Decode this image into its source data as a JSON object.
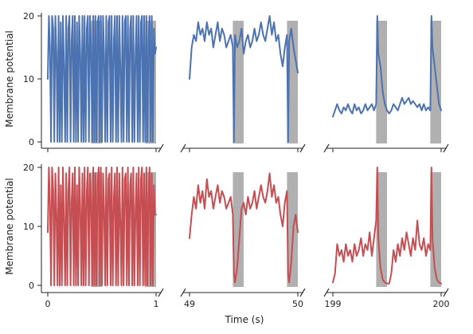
{
  "chart_data": {
    "type": "line",
    "layout": "2x3 grid of panels with broken x-axes",
    "ylabel": "Membrane potential",
    "xlabel": "Time (s)",
    "ylim": [
      0,
      22
    ],
    "yticks": [
      0,
      10,
      20
    ],
    "colors": {
      "top_row": "#4c72b0",
      "bottom_row": "#c44e52",
      "shade": "#b0b0b0",
      "axis": "#222222"
    },
    "segments": [
      {
        "xlim": [
          0,
          1
        ],
        "tick_values": [
          0,
          1
        ],
        "tick_labels": [
          "0",
          "1"
        ],
        "shaded": [
          [
            0.4,
            0.5
          ],
          [
            0.9,
            1.0
          ]
        ]
      },
      {
        "xlim": [
          49,
          50
        ],
        "tick_values": [
          49,
          50
        ],
        "tick_labels": [
          "49",
          "50"
        ],
        "shaded": [
          [
            49.4,
            49.5
          ],
          [
            49.9,
            50.0
          ]
        ]
      },
      {
        "xlim": [
          199,
          200
        ],
        "tick_values": [
          199,
          200
        ],
        "tick_labels": [
          "199",
          "200"
        ],
        "shaded": [
          [
            199.4,
            199.5
          ],
          [
            199.9,
            200.0
          ]
        ]
      }
    ],
    "panels": [
      {
        "row": 0,
        "col": 0,
        "series_color": "#4c72b0",
        "x": [
          0,
          0.01,
          0.02,
          0.03,
          0.04,
          0.05,
          0.06,
          0.07,
          0.08,
          0.09,
          0.1,
          0.11,
          0.12,
          0.13,
          0.14,
          0.15,
          0.16,
          0.17,
          0.18,
          0.19,
          0.2,
          0.21,
          0.22,
          0.23,
          0.24,
          0.25,
          0.26,
          0.27,
          0.28,
          0.29,
          0.3,
          0.31,
          0.32,
          0.33,
          0.34,
          0.35,
          0.36,
          0.37,
          0.38,
          0.39,
          0.4,
          0.41,
          0.42,
          0.43,
          0.44,
          0.45,
          0.46,
          0.47,
          0.48,
          0.49,
          0.5,
          0.51,
          0.52,
          0.53,
          0.54,
          0.55,
          0.56,
          0.57,
          0.58,
          0.59,
          0.6,
          0.61,
          0.62,
          0.63,
          0.64,
          0.65,
          0.66,
          0.67,
          0.68,
          0.69,
          0.7,
          0.71,
          0.72,
          0.73,
          0.74,
          0.75,
          0.76,
          0.77,
          0.78,
          0.79,
          0.8,
          0.81,
          0.82,
          0.83,
          0.84,
          0.85,
          0.86,
          0.87,
          0.88,
          0.89,
          0.9,
          0.91,
          0.92,
          0.93,
          0.94,
          0.95,
          0.96,
          0.97,
          0.98,
          0.99,
          1
        ],
        "y": [
          10,
          20,
          15,
          0,
          20,
          18,
          0,
          20,
          14,
          0,
          20,
          0,
          19,
          0,
          20,
          12,
          0,
          20,
          0,
          18,
          20,
          0,
          16,
          20,
          0,
          20,
          0,
          19,
          0,
          20,
          14,
          0,
          20,
          0,
          20,
          0,
          18,
          20,
          0,
          20,
          15,
          0,
          20,
          0,
          20,
          0,
          19,
          20,
          0,
          20,
          0,
          20,
          14,
          0,
          20,
          0,
          19,
          20,
          0,
          20,
          0,
          16,
          20,
          0,
          20,
          0,
          20,
          12,
          0,
          20,
          0,
          19,
          20,
          0,
          20,
          0,
          18,
          20,
          0,
          20,
          0,
          14,
          20,
          0,
          20,
          0,
          19,
          20,
          0,
          20,
          0,
          20,
          0,
          16,
          20,
          0,
          20,
          0,
          18,
          14,
          15
        ]
      },
      {
        "row": 0,
        "col": 1,
        "series_color": "#4c72b0",
        "x": [
          49,
          49.02,
          49.04,
          49.06,
          49.08,
          49.1,
          49.12,
          49.14,
          49.16,
          49.18,
          49.2,
          49.22,
          49.24,
          49.26,
          49.28,
          49.3,
          49.32,
          49.34,
          49.36,
          49.38,
          49.4,
          49.41,
          49.42,
          49.44,
          49.46,
          49.48,
          49.5,
          49.52,
          49.54,
          49.56,
          49.58,
          49.6,
          49.62,
          49.64,
          49.66,
          49.68,
          49.7,
          49.72,
          49.74,
          49.76,
          49.78,
          49.8,
          49.82,
          49.84,
          49.86,
          49.88,
          49.9,
          49.91,
          49.92,
          49.94,
          49.96,
          49.98,
          50
        ],
        "y": [
          10,
          15,
          17,
          16,
          19,
          17,
          18,
          16,
          19,
          17,
          18,
          15,
          17,
          19,
          16,
          18,
          17,
          15,
          16,
          17,
          15,
          0,
          17,
          15,
          16,
          18,
          14,
          16,
          17,
          15,
          16,
          18,
          16,
          17,
          19,
          17,
          16,
          18,
          20,
          17,
          19,
          16,
          17,
          14,
          12,
          15,
          17,
          0,
          16,
          18,
          15,
          13,
          11
        ]
      },
      {
        "row": 0,
        "col": 2,
        "series_color": "#4c72b0",
        "x": [
          199,
          199.02,
          199.04,
          199.06,
          199.08,
          199.1,
          199.12,
          199.14,
          199.16,
          199.18,
          199.2,
          199.22,
          199.24,
          199.26,
          199.28,
          199.3,
          199.32,
          199.34,
          199.36,
          199.38,
          199.4,
          199.41,
          199.42,
          199.44,
          199.46,
          199.48,
          199.5,
          199.52,
          199.54,
          199.56,
          199.58,
          199.6,
          199.62,
          199.64,
          199.66,
          199.68,
          199.7,
          199.72,
          199.74,
          199.76,
          199.78,
          199.8,
          199.82,
          199.84,
          199.86,
          199.88,
          199.9,
          199.91,
          199.92,
          199.94,
          199.96,
          199.98,
          200
        ],
        "y": [
          4,
          5,
          6,
          5,
          4.5,
          5.5,
          5,
          6,
          5,
          4.5,
          6,
          5,
          5.5,
          4.5,
          5,
          6,
          5,
          5.5,
          6,
          5,
          6,
          20,
          14,
          12,
          8,
          6,
          5,
          4.5,
          5,
          6,
          5.5,
          5,
          6,
          7,
          6,
          6.5,
          7,
          6,
          6.5,
          6,
          5.5,
          6,
          5,
          6,
          5,
          5.5,
          5,
          20,
          15,
          12,
          9,
          6,
          5
        ]
      },
      {
        "row": 1,
        "col": 0,
        "series_color": "#c44e52",
        "x": [
          0,
          0.01,
          0.02,
          0.03,
          0.04,
          0.05,
          0.06,
          0.07,
          0.08,
          0.09,
          0.1,
          0.11,
          0.12,
          0.13,
          0.14,
          0.15,
          0.16,
          0.17,
          0.18,
          0.19,
          0.2,
          0.21,
          0.22,
          0.23,
          0.24,
          0.25,
          0.26,
          0.27,
          0.28,
          0.29,
          0.3,
          0.31,
          0.32,
          0.33,
          0.34,
          0.35,
          0.36,
          0.37,
          0.38,
          0.39,
          0.4,
          0.41,
          0.42,
          0.43,
          0.44,
          0.45,
          0.46,
          0.47,
          0.48,
          0.49,
          0.5,
          0.51,
          0.52,
          0.53,
          0.54,
          0.55,
          0.56,
          0.57,
          0.58,
          0.59,
          0.6,
          0.61,
          0.62,
          0.63,
          0.64,
          0.65,
          0.66,
          0.67,
          0.68,
          0.69,
          0.7,
          0.71,
          0.72,
          0.73,
          0.74,
          0.75,
          0.76,
          0.77,
          0.78,
          0.79,
          0.8,
          0.81,
          0.82,
          0.83,
          0.84,
          0.85,
          0.86,
          0.87,
          0.88,
          0.89,
          0.9,
          0.91,
          0.92,
          0.93,
          0.94,
          0.95,
          0.96,
          0.97,
          0.98,
          0.99,
          1
        ],
        "y": [
          9,
          20,
          14,
          0,
          20,
          16,
          0,
          19,
          12,
          0,
          20,
          0,
          17,
          0,
          20,
          11,
          0,
          19,
          0,
          16,
          20,
          0,
          14,
          19,
          0,
          20,
          0,
          17,
          0,
          20,
          13,
          0,
          19,
          0,
          20,
          0,
          16,
          20,
          0,
          19,
          14,
          0,
          20,
          0,
          19,
          0,
          17,
          20,
          0,
          20,
          0,
          19,
          13,
          0,
          20,
          0,
          18,
          19,
          0,
          20,
          0,
          15,
          19,
          0,
          20,
          0,
          19,
          11,
          0,
          20,
          0,
          18,
          19,
          0,
          20,
          0,
          17,
          19,
          0,
          20,
          0,
          13,
          19,
          0,
          20,
          0,
          18,
          20,
          0,
          19,
          0,
          20,
          0,
          15,
          20,
          0,
          19,
          0,
          17,
          12,
          12
        ]
      },
      {
        "row": 1,
        "col": 1,
        "series_color": "#c44e52",
        "x": [
          49,
          49.02,
          49.04,
          49.06,
          49.08,
          49.1,
          49.12,
          49.14,
          49.16,
          49.18,
          49.2,
          49.22,
          49.24,
          49.26,
          49.28,
          49.3,
          49.32,
          49.34,
          49.36,
          49.38,
          49.4,
          49.41,
          49.42,
          49.44,
          49.46,
          49.48,
          49.5,
          49.52,
          49.54,
          49.56,
          49.58,
          49.6,
          49.62,
          49.64,
          49.66,
          49.68,
          49.7,
          49.72,
          49.74,
          49.76,
          49.78,
          49.8,
          49.82,
          49.84,
          49.86,
          49.88,
          49.9,
          49.91,
          49.92,
          49.94,
          49.96,
          49.98,
          50
        ],
        "y": [
          8,
          12,
          15,
          13,
          17,
          14,
          16,
          13,
          18,
          15,
          16,
          13,
          15,
          17,
          14,
          16,
          15,
          13,
          14,
          15,
          12,
          2,
          0.5,
          3,
          8,
          13,
          14,
          12,
          15,
          13,
          14,
          16,
          13,
          15,
          17,
          15,
          14,
          16,
          19,
          15,
          17,
          14,
          15,
          12,
          10,
          14,
          16,
          2,
          0.5,
          4,
          10,
          12,
          9
        ]
      },
      {
        "row": 1,
        "col": 2,
        "series_color": "#c44e52",
        "x": [
          199,
          199.02,
          199.04,
          199.06,
          199.08,
          199.1,
          199.12,
          199.14,
          199.16,
          199.18,
          199.2,
          199.22,
          199.24,
          199.26,
          199.28,
          199.3,
          199.32,
          199.34,
          199.36,
          199.38,
          199.4,
          199.41,
          199.42,
          199.44,
          199.46,
          199.48,
          199.5,
          199.52,
          199.54,
          199.56,
          199.58,
          199.6,
          199.62,
          199.64,
          199.66,
          199.68,
          199.7,
          199.72,
          199.74,
          199.76,
          199.78,
          199.8,
          199.82,
          199.84,
          199.86,
          199.88,
          199.9,
          199.91,
          199.92,
          199.94,
          199.96,
          199.98,
          200
        ],
        "y": [
          0.5,
          2,
          7,
          5,
          6,
          4,
          7,
          5,
          6,
          4,
          7,
          5,
          6,
          8,
          5,
          7,
          6,
          9,
          5,
          8,
          11,
          20,
          8,
          3,
          1,
          0.5,
          0.3,
          0.3,
          2,
          6,
          4,
          7,
          5,
          8,
          6,
          9,
          7,
          5,
          8,
          6,
          11,
          7,
          6,
          8,
          5,
          7,
          6,
          20,
          8,
          3,
          1,
          0.5,
          0.3
        ]
      }
    ]
  }
}
